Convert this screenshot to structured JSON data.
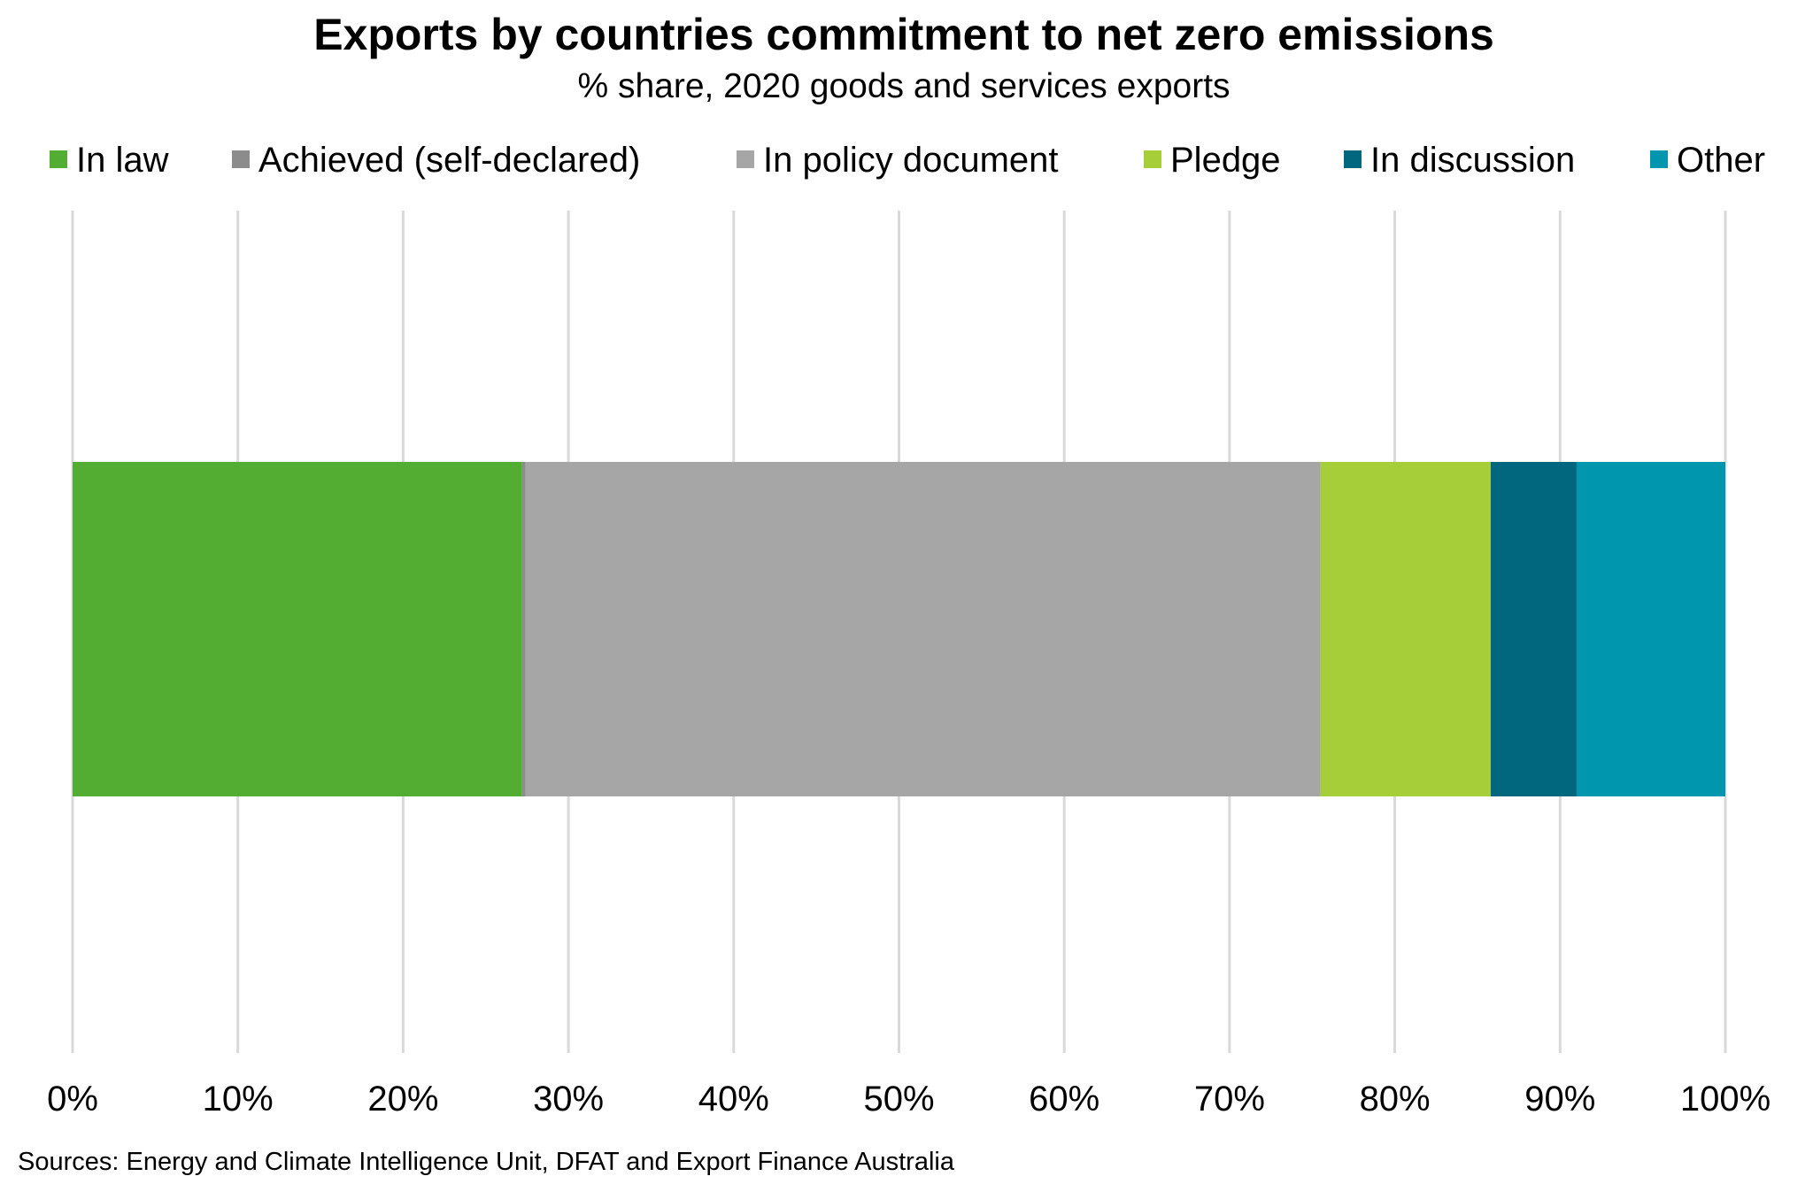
{
  "chart_data": {
    "type": "bar",
    "orientation": "horizontal",
    "stacked": true,
    "title": "Exports by countries commitment to net zero emissions",
    "subtitle": "% share, 2020 goods and services exports",
    "xlabel": "",
    "ylabel": "",
    "xlim": [
      0,
      100
    ],
    "x_ticks": [
      "0%",
      "10%",
      "20%",
      "30%",
      "40%",
      "50%",
      "60%",
      "70%",
      "80%",
      "90%",
      "100%"
    ],
    "grid": "vertical",
    "legend_position": "top",
    "series": [
      {
        "name": "In law",
        "value": 27.2,
        "color": "#52ad32"
      },
      {
        "name": "Achieved (self-declared)",
        "value": 0.2,
        "color": "#8c8c8c"
      },
      {
        "name": "In policy document",
        "value": 48.1,
        "color": "#a6a6a6"
      },
      {
        "name": "Pledge",
        "value": 10.3,
        "color": "#a6ce39"
      },
      {
        "name": "In discussion",
        "value": 5.2,
        "color": "#00677f"
      },
      {
        "name": "Other",
        "value": 9.0,
        "color": "#0096ae"
      }
    ],
    "source": "Sources: Energy and Climate Intelligence  Unit, DFAT and Export Finance Australia"
  }
}
